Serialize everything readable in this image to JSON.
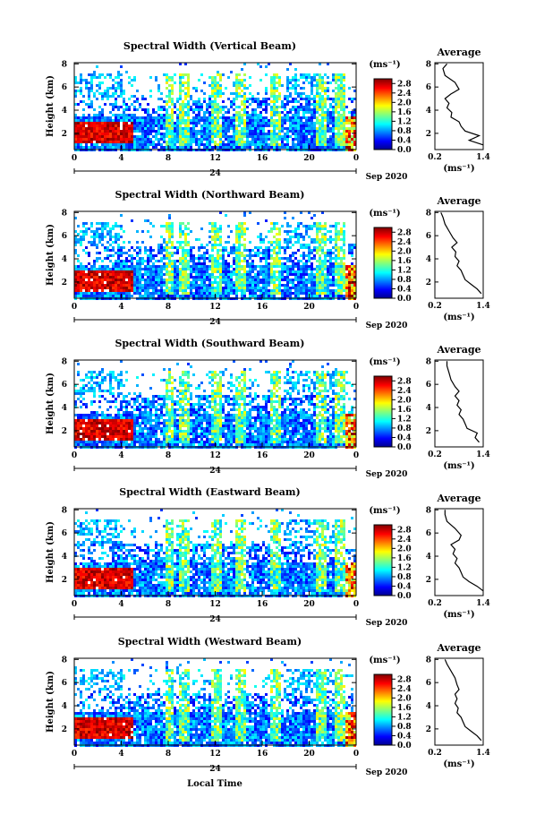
{
  "figure": {
    "x_axis_label": "Local Time",
    "day_marker": "24",
    "date_label": "Sep 2020",
    "colorbar_unit": "(ms⁻¹)",
    "y_axis_label": "Height (km)",
    "average_title": "Average",
    "average_unit": "(ms⁻¹)"
  },
  "chart_data": [
    {
      "type": "heatmap",
      "title": "Spectral Width (Vertical Beam)",
      "ylabel": "Height (km)",
      "x_ticks": [
        "0",
        "4",
        "8",
        "12",
        "16",
        "20",
        "0"
      ],
      "y_ticks": [
        "2",
        "4",
        "6",
        "8"
      ],
      "xlim": [
        0,
        24
      ],
      "ylim": [
        0.6,
        8.1
      ],
      "colorbar": {
        "ticks": [
          "0.0",
          "0.4",
          "0.8",
          "1.2",
          "1.6",
          "2.0",
          "2.4",
          "2.8"
        ],
        "range": [
          0,
          3.0
        ]
      },
      "average": {
        "x_ticks": [
          "0.2",
          "1.4"
        ],
        "y_ticks": [
          "2",
          "4",
          "6",
          "8"
        ],
        "xlim": [
          0.2,
          1.4
        ],
        "ylim": [
          0.6,
          8.1
        ],
        "x": [
          1.4,
          1.05,
          1.3,
          0.95,
          0.85,
          0.8,
          0.6,
          0.62,
          0.5,
          0.55,
          0.45,
          0.6,
          0.8,
          0.7,
          0.45,
          0.4,
          0.5
        ],
        "y": [
          1,
          1.4,
          1.8,
          2.2,
          2.6,
          3,
          3.4,
          3.8,
          4.2,
          4.6,
          5,
          5.4,
          5.8,
          6.4,
          7,
          7.6,
          8
        ]
      }
    },
    {
      "type": "heatmap",
      "title": "Spectral Width (Northward Beam)",
      "ylabel": "Height (km)",
      "x_ticks": [
        "0",
        "4",
        "8",
        "12",
        "16",
        "20",
        "0"
      ],
      "y_ticks": [
        "2",
        "4",
        "6",
        "8"
      ],
      "xlim": [
        0,
        24
      ],
      "ylim": [
        0.6,
        8.1
      ],
      "colorbar": {
        "ticks": [
          "0.0",
          "0.4",
          "0.8",
          "1.2",
          "1.6",
          "2.0",
          "2.4",
          "2.8"
        ],
        "range": [
          0,
          3.0
        ]
      },
      "average": {
        "x_ticks": [
          "0.2",
          "1.4"
        ],
        "y_ticks": [
          "2",
          "4",
          "6",
          "8"
        ],
        "xlim": [
          0.2,
          1.4
        ],
        "ylim": [
          0.6,
          8.1
        ],
        "x": [
          1.35,
          1.25,
          1.1,
          0.95,
          0.9,
          0.85,
          0.75,
          0.8,
          0.7,
          0.72,
          0.62,
          0.75,
          0.65,
          0.55,
          0.45,
          0.4,
          0.35
        ],
        "y": [
          1,
          1.4,
          1.8,
          2.2,
          2.6,
          3,
          3.4,
          3.8,
          4.2,
          4.6,
          5,
          5.4,
          5.8,
          6.4,
          7,
          7.6,
          8
        ]
      }
    },
    {
      "type": "heatmap",
      "title": "Spectral Width (Southward Beam)",
      "ylabel": "Height (km)",
      "x_ticks": [
        "0",
        "4",
        "8",
        "12",
        "16",
        "20",
        "0"
      ],
      "y_ticks": [
        "2",
        "4",
        "6",
        "8"
      ],
      "xlim": [
        0,
        24
      ],
      "ylim": [
        0.6,
        8.1
      ],
      "colorbar": {
        "ticks": [
          "0.0",
          "0.4",
          "0.8",
          "1.2",
          "1.6",
          "2.0",
          "2.4",
          "2.8"
        ],
        "range": [
          0,
          3.0
        ]
      },
      "average": {
        "x_ticks": [
          "0.2",
          "1.4"
        ],
        "y_ticks": [
          "2",
          "4",
          "6",
          "8"
        ],
        "xlim": [
          0.2,
          1.4
        ],
        "ylim": [
          0.6,
          8.1
        ],
        "x": [
          1.3,
          1.2,
          1.25,
          1.0,
          0.95,
          0.9,
          0.8,
          0.85,
          0.75,
          0.8,
          0.7,
          0.8,
          0.7,
          0.6,
          0.55,
          0.5,
          0.5
        ],
        "y": [
          1,
          1.4,
          1.8,
          2.2,
          2.6,
          3,
          3.4,
          3.8,
          4.2,
          4.6,
          5,
          5.4,
          5.8,
          6.4,
          7,
          7.6,
          8
        ]
      }
    },
    {
      "type": "heatmap",
      "title": "Spectral Width (Eastward Beam)",
      "ylabel": "Height (km)",
      "x_ticks": [
        "0",
        "4",
        "8",
        "12",
        "16",
        "20",
        "0"
      ],
      "y_ticks": [
        "2",
        "4",
        "6",
        "8"
      ],
      "xlim": [
        0,
        24
      ],
      "ylim": [
        0.6,
        8.1
      ],
      "colorbar": {
        "ticks": [
          "0.0",
          "0.4",
          "0.8",
          "1.2",
          "1.6",
          "2.0",
          "2.4",
          "2.8"
        ],
        "range": [
          0,
          3.0
        ]
      },
      "average": {
        "x_ticks": [
          "0.2",
          "1.4"
        ],
        "y_ticks": [
          "2",
          "4",
          "6",
          "8"
        ],
        "xlim": [
          0.2,
          1.4
        ],
        "ylim": [
          0.6,
          8.1
        ],
        "x": [
          1.4,
          1.25,
          1.05,
          0.9,
          0.85,
          0.8,
          0.7,
          0.75,
          0.65,
          0.7,
          0.6,
          0.8,
          0.85,
          0.7,
          0.5,
          0.45,
          0.45
        ],
        "y": [
          1,
          1.4,
          1.8,
          2.2,
          2.6,
          3,
          3.4,
          3.8,
          4.2,
          4.6,
          5,
          5.4,
          5.8,
          6.4,
          7,
          7.6,
          8
        ]
      }
    },
    {
      "type": "heatmap",
      "title": "Spectral Width (Westward Beam)",
      "ylabel": "Height (km)",
      "x_ticks": [
        "0",
        "4",
        "8",
        "12",
        "16",
        "20",
        "0"
      ],
      "y_ticks": [
        "2",
        "4",
        "6",
        "8"
      ],
      "xlim": [
        0,
        24
      ],
      "ylim": [
        0.6,
        8.1
      ],
      "colorbar": {
        "ticks": [
          "0.0",
          "0.4",
          "0.8",
          "1.2",
          "1.6",
          "2.0",
          "2.4",
          "2.8"
        ],
        "range": [
          0,
          3.0
        ]
      },
      "average": {
        "x_ticks": [
          "0.2",
          "1.4"
        ],
        "y_ticks": [
          "2",
          "4",
          "6",
          "8"
        ],
        "xlim": [
          0.2,
          1.4
        ],
        "ylim": [
          0.6,
          8.1
        ],
        "x": [
          1.35,
          1.25,
          1.1,
          0.95,
          0.9,
          0.85,
          0.75,
          0.78,
          0.7,
          0.75,
          0.7,
          0.8,
          0.75,
          0.7,
          0.6,
          0.5,
          0.45
        ],
        "y": [
          1,
          1.4,
          1.8,
          2.2,
          2.6,
          3,
          3.4,
          3.8,
          4.2,
          4.6,
          5,
          5.4,
          5.8,
          6.4,
          7,
          7.6,
          8
        ]
      }
    }
  ]
}
